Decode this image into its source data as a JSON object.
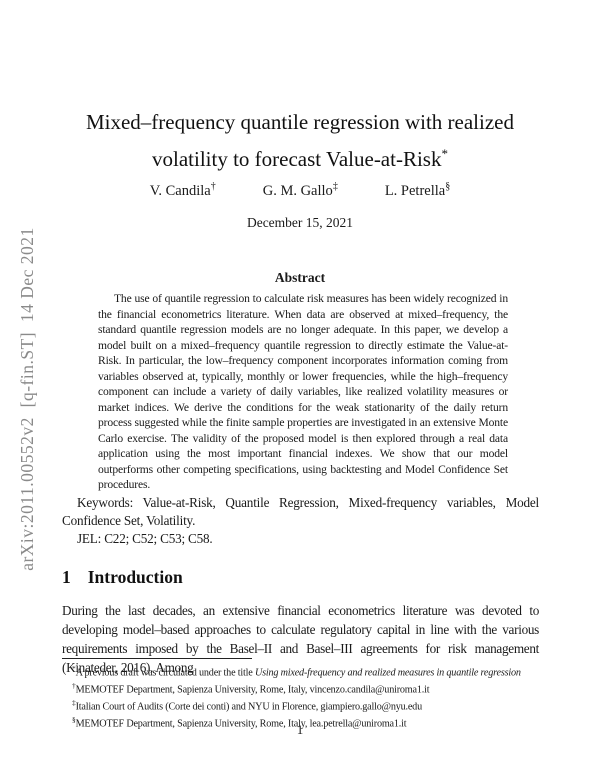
{
  "watermark": "arXiv:2011.00552v2  [q-fin.ST]  14 Dec 2021",
  "title": {
    "line1": "Mixed–frequency quantile regression with realized",
    "line2": "volatility to forecast Value-at-Risk",
    "footnote_marker": "*"
  },
  "authors": [
    {
      "name": "V. Candila",
      "marker": "†"
    },
    {
      "name": "G. M. Gallo",
      "marker": "‡"
    },
    {
      "name": "L. Petrella",
      "marker": "§"
    }
  ],
  "date": "December 15, 2021",
  "abstract": {
    "heading": "Abstract",
    "text": "The use of quantile regression to calculate risk measures has been widely recognized in the financial econometrics literature. When data are observed at mixed–frequency, the standard quantile regression models are no longer adequate. In this paper, we develop a model built on a mixed–frequency quantile regression to directly estimate the Value-at-Risk. In particular, the low–frequency component incorporates information coming from variables observed at, typically, monthly or lower frequencies, while the high–frequency component can include a variety of daily variables, like realized volatility measures or market indices. We derive the conditions for the weak stationarity of the daily return process suggested while the finite sample properties are investigated in an extensive Monte Carlo exercise. The validity of the proposed model is then explored through a real data application using the most important financial indexes. We show that our model outperforms other competing specifications, using backtesting and Model Confidence Set procedures."
  },
  "keywords": "Keywords: Value-at-Risk, Quantile Regression, Mixed-frequency variables, Model Confidence Set, Volatility.",
  "jel": "JEL: C22; C52; C53; C58.",
  "section1": {
    "number": "1",
    "title": "Introduction",
    "paragraph": "During the last decades, an extensive financial econometrics literature was devoted to developing model–based approaches to calculate regulatory capital in line with the various requirements imposed by the Basel–II and Basel–III agreements for risk management (Kinateder, 2016). Among"
  },
  "footnotes": [
    {
      "marker": "*",
      "text": "A previous draft was circulated under the title ",
      "italic": "Using mixed-frequency and realized measures in quantile regression"
    },
    {
      "marker": "†",
      "text": "MEMOTEF Department, Sapienza University, Rome, Italy, vincenzo.candila@uniroma1.it",
      "italic": ""
    },
    {
      "marker": "‡",
      "text": "Italian Court of Audits (Corte dei conti) and NYU in Florence, giampiero.gallo@nyu.edu",
      "italic": ""
    },
    {
      "marker": "§",
      "text": "MEMOTEF Department, Sapienza University, Rome, Italy, lea.petrella@uniroma1.it",
      "italic": ""
    }
  ],
  "page_number": "1"
}
